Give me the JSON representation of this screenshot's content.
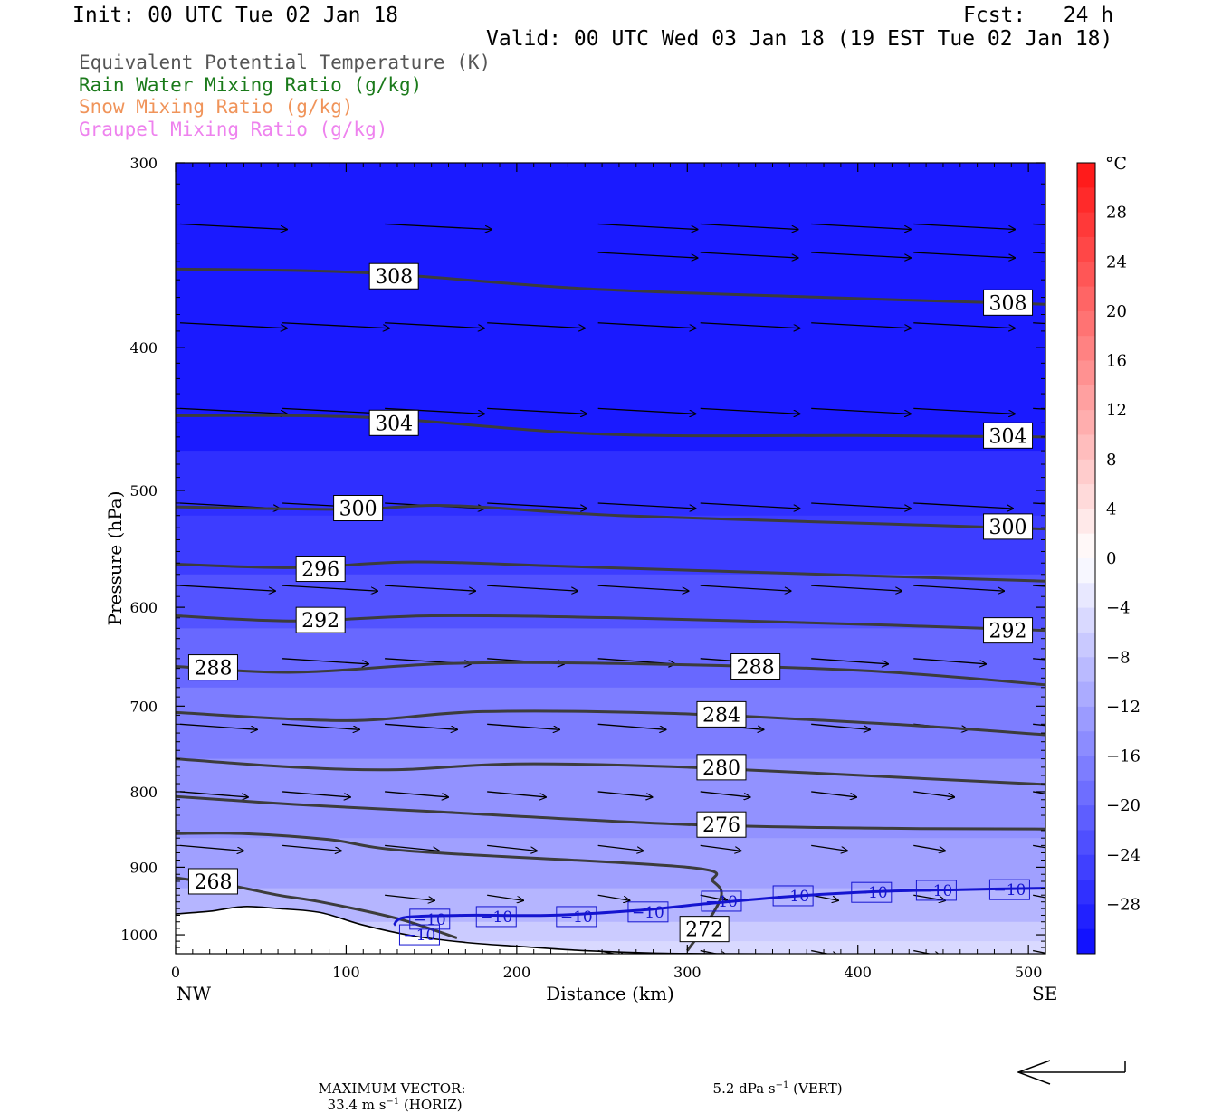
{
  "header": {
    "init": "Init: 00 UTC Tue 02 Jan 18",
    "fcst": "Fcst:   24 h",
    "valid": "Valid: 00 UTC Wed 03 Jan 18 (19 EST Tue 02 Jan 18)"
  },
  "legend": [
    {
      "text": "Equivalent Potential Temperature (K)",
      "color": "#555555"
    },
    {
      "text": "Rain Water Mixing Ratio (g/kg)",
      "color": "#1a7a1a"
    },
    {
      "text": "Snow Mixing Ratio (g/kg)",
      "color": "#f0945a"
    },
    {
      "text": "Graupel Mixing Ratio (g/kg)",
      "color": "#ee82ee"
    }
  ],
  "colorbar": {
    "unit": "°C",
    "ticks": [
      "28",
      "24",
      "20",
      "16",
      "12",
      "8",
      "4",
      "0",
      "−4",
      "−8",
      "−12",
      "−16",
      "−20",
      "−24",
      "−28"
    ],
    "tick_values": [
      28,
      24,
      20,
      16,
      12,
      8,
      4,
      0,
      -4,
      -8,
      -12,
      -16,
      -20,
      -24,
      -28
    ],
    "min": -32,
    "max": 32
  },
  "chart_data": {
    "type": "cross-section",
    "xlabel": "Distance (km)",
    "ylabel": "Pressure (hPa)",
    "xlim": [
      0,
      510
    ],
    "ylim": [
      1030,
      300
    ],
    "y_scale": "log",
    "x_ticks": [
      "0",
      "100",
      "200",
      "300",
      "400",
      "500"
    ],
    "x_tick_values": [
      0,
      100,
      200,
      300,
      400,
      500
    ],
    "y_ticks": [
      "300",
      "400",
      "500",
      "600",
      "700",
      "800",
      "900",
      "1000"
    ],
    "y_tick_values": [
      300,
      400,
      500,
      600,
      700,
      800,
      900,
      1000
    ],
    "left_end_label": "NW",
    "right_end_label": "SE",
    "theta_e_contours": [
      {
        "label": "308",
        "points": [
          [
            0,
            354
          ],
          [
            110,
            356
          ],
          [
            240,
            365
          ],
          [
            380,
            370
          ],
          [
            510,
            374
          ]
        ],
        "labels_at": [
          [
            128,
            358
          ],
          [
            488,
            373
          ]
        ]
      },
      {
        "label": "304",
        "points": [
          [
            0,
            445
          ],
          [
            110,
            446
          ],
          [
            250,
            458
          ],
          [
            400,
            459
          ],
          [
            510,
            460
          ]
        ],
        "labels_at": [
          [
            128,
            450
          ],
          [
            488,
            459
          ]
        ]
      },
      {
        "label": "300",
        "points": [
          [
            0,
            513
          ],
          [
            100,
            515
          ],
          [
            160,
            512
          ],
          [
            260,
            520
          ],
          [
            420,
            527
          ],
          [
            510,
            531
          ]
        ],
        "labels_at": [
          [
            107,
            514
          ],
          [
            488,
            529
          ]
        ]
      },
      {
        "label": "296",
        "points": [
          [
            0,
            561
          ],
          [
            70,
            564
          ],
          [
            140,
            559
          ],
          [
            230,
            563
          ],
          [
            380,
            570
          ],
          [
            510,
            576
          ]
        ],
        "labels_at": [
          [
            85,
            565
          ]
        ]
      },
      {
        "label": "292",
        "points": [
          [
            0,
            608
          ],
          [
            70,
            613
          ],
          [
            150,
            608
          ],
          [
            260,
            610
          ],
          [
            420,
            617
          ],
          [
            510,
            622
          ]
        ],
        "labels_at": [
          [
            85,
            612
          ],
          [
            488,
            622
          ]
        ]
      },
      {
        "label": "288",
        "points": [
          [
            0,
            658
          ],
          [
            70,
            664
          ],
          [
            160,
            655
          ],
          [
            260,
            655
          ],
          [
            400,
            662
          ],
          [
            510,
            677
          ]
        ],
        "labels_at": [
          [
            22,
            659
          ],
          [
            340,
            658
          ]
        ]
      },
      {
        "label": "284",
        "points": [
          [
            0,
            707
          ],
          [
            100,
            716
          ],
          [
            180,
            706
          ],
          [
            290,
            708
          ],
          [
            420,
            720
          ],
          [
            510,
            732
          ]
        ],
        "labels_at": [
          [
            320,
            709
          ]
        ]
      },
      {
        "label": "280",
        "points": [
          [
            0,
            760
          ],
          [
            70,
            770
          ],
          [
            130,
            773
          ],
          [
            200,
            766
          ],
          [
            300,
            770
          ],
          [
            450,
            785
          ],
          [
            510,
            791
          ]
        ],
        "labels_at": [
          [
            320,
            770
          ]
        ]
      },
      {
        "label": "276",
        "points": [
          [
            0,
            806
          ],
          [
            70,
            816
          ],
          [
            150,
            825
          ],
          [
            300,
            842
          ],
          [
            420,
            847
          ],
          [
            510,
            848
          ]
        ],
        "labels_at": [
          [
            320,
            842
          ]
        ]
      },
      {
        "label": "272",
        "points": [
          [
            0,
            854
          ],
          [
            40,
            854
          ],
          [
            90,
            862
          ],
          [
            140,
            878
          ],
          [
            300,
            900
          ],
          [
            315,
            920
          ],
          [
            320,
            940
          ],
          [
            312,
            980
          ],
          [
            300,
            1025
          ]
        ],
        "labels_at": [
          [
            310,
            991
          ]
        ]
      },
      {
        "label": "268",
        "points": [
          [
            0,
            915
          ],
          [
            30,
            925
          ],
          [
            60,
            940
          ],
          [
            85,
            950
          ],
          [
            130,
            975
          ],
          [
            165,
            1005
          ]
        ],
        "labels_at": [
          [
            22,
            920
          ]
        ]
      }
    ],
    "temperature_contours": [
      {
        "label": "−10",
        "value": -10,
        "points": [
          [
            128,
            985
          ],
          [
            135,
            973
          ],
          [
            170,
            970
          ],
          [
            220,
            970
          ],
          [
            270,
            963
          ],
          [
            310,
            953
          ],
          [
            360,
            942
          ],
          [
            410,
            935
          ],
          [
            460,
            932
          ],
          [
            510,
            930
          ]
        ],
        "labels_at": [
          [
            149,
            976
          ],
          [
            188,
            972
          ],
          [
            235,
            972
          ],
          [
            277,
            965
          ],
          [
            320,
            949
          ],
          [
            362,
            941
          ],
          [
            408,
            936
          ],
          [
            446,
            933
          ],
          [
            489,
            932
          ],
          [
            143,
            1000
          ]
        ]
      }
    ],
    "terrain_pressure": [
      [
        0,
        968
      ],
      [
        20,
        964
      ],
      [
        40,
        957
      ],
      [
        60,
        960
      ],
      [
        85,
        966
      ],
      [
        110,
        985
      ],
      [
        140,
        1002
      ],
      [
        170,
        1012
      ],
      [
        200,
        1018
      ],
      [
        240,
        1025
      ],
      [
        280,
        1029
      ],
      [
        320,
        1030
      ],
      [
        400,
        1031
      ],
      [
        510,
        1032
      ]
    ],
    "temperature_field_note": "shaded temperature (°C) cross-section",
    "max_vector_label": "MAXIMUM VECTOR:",
    "max_vector_horiz": "33.4 m s",
    "max_vector_horiz_unit": "(HORIZ)",
    "max_vector_vert": "5.2 dPa s",
    "max_vector_vert_unit": "(VERT)",
    "superscript": "−1"
  }
}
